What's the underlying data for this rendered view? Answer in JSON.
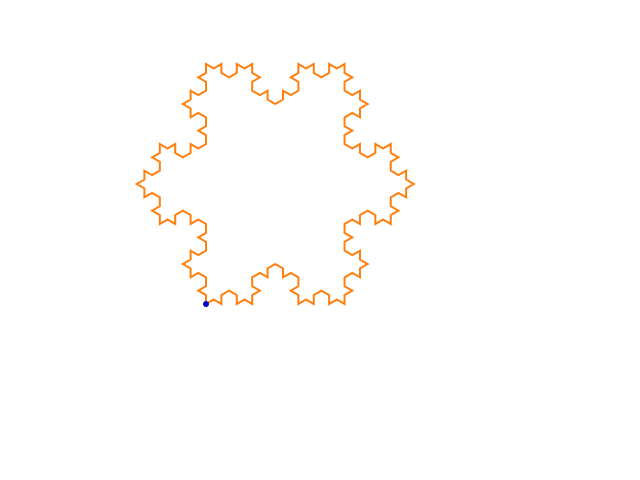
{
  "drawing": {
    "shape": "koch-snowflake",
    "iterations": 3,
    "stroke_color": "#ff7f0e",
    "marker": {
      "color": "#0000cc",
      "icon": "turtle-position-dot"
    },
    "background": "#ffffff"
  }
}
